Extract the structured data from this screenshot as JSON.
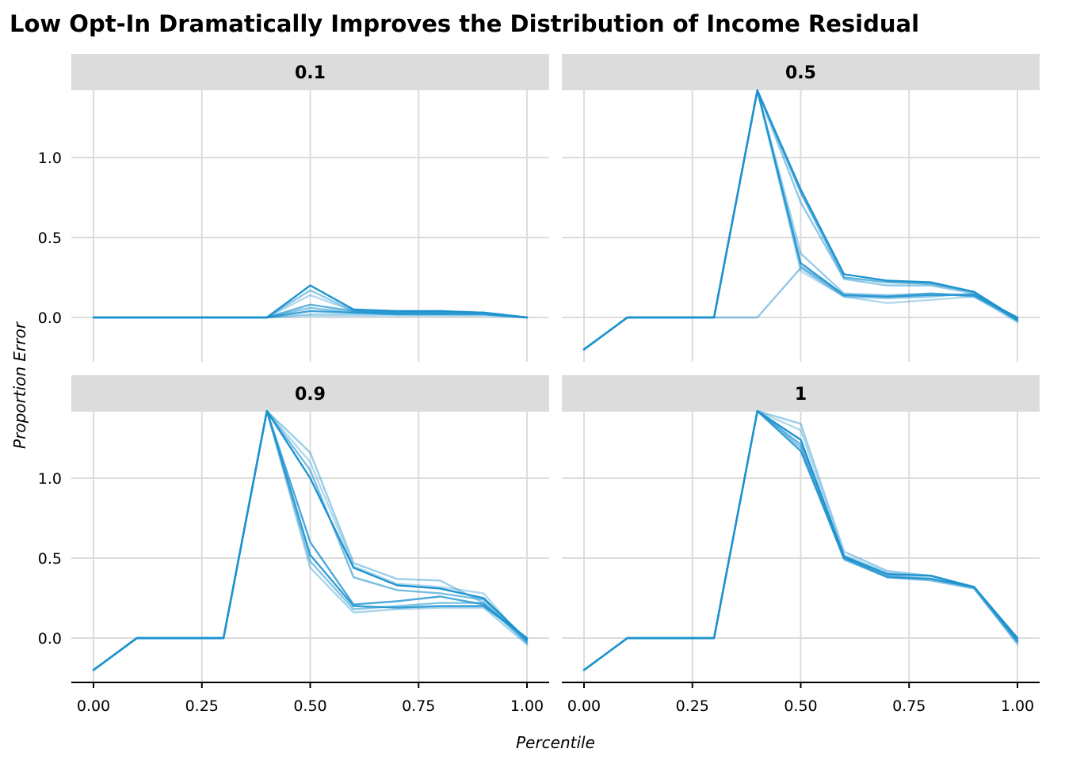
{
  "chart_data": {
    "type": "line",
    "title": "Low Opt-In Dramatically Improves the Distribution of Income Residual",
    "xlabel": "Percentile",
    "ylabel": "Proportion Error",
    "xlim": [
      0,
      1
    ],
    "ylim": [
      -0.25,
      1.4
    ],
    "xticks": [
      "0.00",
      "0.25",
      "0.50",
      "0.75",
      "1.00"
    ],
    "yticks": [
      "0.0",
      "0.5",
      "1.0"
    ],
    "line_color": "#1f93cf",
    "facets_layout": "2x2",
    "x": [
      0.0,
      0.1,
      0.2,
      0.3,
      0.4,
      0.5,
      0.6,
      0.7,
      0.8,
      0.9,
      1.0
    ],
    "facets": [
      {
        "label": "0.1",
        "series": [
          {
            "opacity": 1.0,
            "values": [
              0,
              0,
              0,
              0,
              0,
              0.2,
              0.05,
              0.04,
              0.04,
              0.03,
              0
            ]
          },
          {
            "opacity": 0.5,
            "values": [
              0,
              0,
              0,
              0,
              0,
              0.17,
              0.04,
              0.03,
              0.04,
              0.03,
              0
            ]
          },
          {
            "opacity": 0.35,
            "values": [
              0,
              0,
              0,
              0,
              0,
              0.14,
              0.04,
              0.03,
              0.03,
              0.03,
              0
            ]
          },
          {
            "opacity": 0.7,
            "values": [
              0,
              0,
              0,
              0,
              0,
              0.08,
              0.04,
              0.03,
              0.03,
              0.03,
              0
            ]
          },
          {
            "opacity": 0.55,
            "values": [
              0,
              0,
              0,
              0,
              0,
              0.06,
              0.03,
              0.03,
              0.03,
              0.03,
              0
            ]
          },
          {
            "opacity": 0.85,
            "values": [
              0,
              0,
              0,
              0,
              0,
              0.04,
              0.03,
              0.02,
              0.02,
              0.02,
              0
            ]
          },
          {
            "opacity": 0.4,
            "values": [
              0,
              0,
              0,
              0,
              0,
              0.02,
              0.02,
              0.02,
              0.02,
              0.02,
              0
            ]
          },
          {
            "opacity": 0.3,
            "values": [
              0,
              0,
              0,
              0,
              0,
              0.01,
              0.01,
              0.01,
              0.01,
              0.01,
              0
            ]
          }
        ]
      },
      {
        "label": "0.5",
        "series": [
          {
            "opacity": 1.0,
            "values": [
              -0.2,
              0,
              0,
              0,
              1.42,
              0.8,
              0.27,
              0.23,
              0.22,
              0.16,
              -0.01
            ]
          },
          {
            "opacity": 0.7,
            "values": [
              -0.2,
              0,
              0,
              0,
              1.42,
              0.78,
              0.25,
              0.22,
              0.21,
              0.16,
              -0.02
            ]
          },
          {
            "opacity": 0.5,
            "values": [
              -0.2,
              0,
              0,
              0,
              1.42,
              0.72,
              0.24,
              0.2,
              0.2,
              0.15,
              -0.02
            ]
          },
          {
            "opacity": 0.9,
            "values": [
              -0.2,
              0,
              0,
              0,
              1.42,
              0.34,
              0.14,
              0.13,
              0.14,
              0.14,
              0
            ]
          },
          {
            "opacity": 0.6,
            "values": [
              -0.2,
              0,
              0,
              0,
              1.42,
              0.32,
              0.14,
              0.13,
              0.15,
              0.13,
              -0.01
            ]
          },
          {
            "opacity": 0.45,
            "values": [
              -0.2,
              0,
              0,
              0,
              1.42,
              0.4,
              0.15,
              0.14,
              0.15,
              0.14,
              -0.02
            ]
          },
          {
            "opacity": 0.35,
            "values": [
              -0.2,
              0,
              0,
              0,
              1.42,
              0.29,
              0.13,
              0.09,
              0.11,
              0.13,
              -0.03
            ]
          },
          {
            "opacity": 0.5,
            "values": [
              -0.2,
              0,
              0,
              0,
              0.0,
              0.31,
              0.13,
              0.12,
              0.13,
              0.15,
              -0.02
            ]
          }
        ]
      },
      {
        "label": "0.9",
        "series": [
          {
            "opacity": 0.45,
            "values": [
              -0.2,
              0,
              0,
              0,
              1.42,
              1.16,
              0.47,
              0.37,
              0.36,
              0.22,
              -0.02
            ]
          },
          {
            "opacity": 0.35,
            "values": [
              -0.2,
              0,
              0,
              0,
              1.42,
              1.1,
              0.45,
              0.34,
              0.32,
              0.28,
              -0.03
            ]
          },
          {
            "opacity": 1.0,
            "values": [
              -0.2,
              0,
              0,
              0,
              1.42,
              1.0,
              0.44,
              0.33,
              0.31,
              0.25,
              -0.01
            ]
          },
          {
            "opacity": 0.6,
            "values": [
              -0.2,
              0,
              0,
              0,
              1.42,
              1.05,
              0.38,
              0.3,
              0.28,
              0.24,
              -0.02
            ]
          },
          {
            "opacity": 0.8,
            "values": [
              -0.2,
              0,
              0,
              0,
              1.42,
              0.6,
              0.21,
              0.23,
              0.26,
              0.21,
              0
            ]
          },
          {
            "opacity": 0.9,
            "values": [
              -0.2,
              0,
              0,
              0,
              1.42,
              0.52,
              0.2,
              0.19,
              0.2,
              0.2,
              0
            ]
          },
          {
            "opacity": 0.55,
            "values": [
              -0.2,
              0,
              0,
              0,
              1.42,
              0.48,
              0.18,
              0.2,
              0.22,
              0.22,
              -0.03
            ]
          },
          {
            "opacity": 0.4,
            "values": [
              -0.2,
              0,
              0,
              0,
              1.42,
              0.44,
              0.16,
              0.18,
              0.19,
              0.19,
              -0.04
            ]
          }
        ]
      },
      {
        "label": "1",
        "series": [
          {
            "opacity": 0.45,
            "values": [
              -0.2,
              0,
              0,
              0,
              1.42,
              1.34,
              0.54,
              0.42,
              0.39,
              0.32,
              -0.02
            ]
          },
          {
            "opacity": 0.35,
            "values": [
              -0.2,
              0,
              0,
              0,
              1.42,
              1.3,
              0.52,
              0.41,
              0.38,
              0.31,
              -0.04
            ]
          },
          {
            "opacity": 1.0,
            "values": [
              -0.2,
              0,
              0,
              0,
              1.42,
              1.24,
              0.51,
              0.4,
              0.39,
              0.32,
              0
            ]
          },
          {
            "opacity": 0.7,
            "values": [
              -0.2,
              0,
              0,
              0,
              1.42,
              1.21,
              0.5,
              0.39,
              0.37,
              0.32,
              -0.01
            ]
          },
          {
            "opacity": 0.55,
            "values": [
              -0.2,
              0,
              0,
              0,
              1.42,
              1.19,
              0.49,
              0.38,
              0.36,
              0.31,
              -0.03
            ]
          },
          {
            "opacity": 0.85,
            "values": [
              -0.2,
              0,
              0,
              0,
              1.42,
              1.17,
              0.5,
              0.38,
              0.37,
              0.32,
              -0.02
            ]
          }
        ]
      }
    ]
  }
}
